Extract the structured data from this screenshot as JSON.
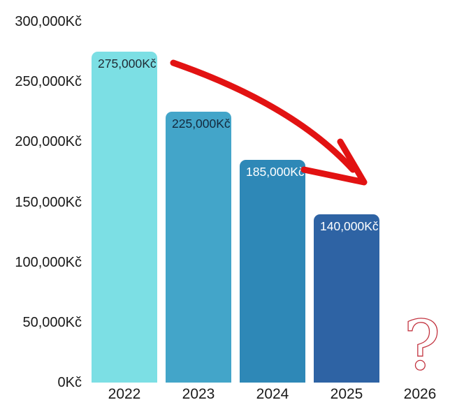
{
  "chart_data": {
    "type": "bar",
    "title": "",
    "xlabel": "",
    "ylabel": "",
    "categories": [
      "2022",
      "2023",
      "2024",
      "2025",
      "2026"
    ],
    "values": [
      275000,
      225000,
      185000,
      140000,
      null
    ],
    "value_labels": [
      "275,000Kč",
      "225,000Kč",
      "185,000Kč",
      "140,000Kč",
      ""
    ],
    "bar_colors": [
      "#7cdfe4",
      "#43a5c9",
      "#2e88b7",
      "#2e63a4"
    ],
    "value_label_colors": [
      "#1f2a33",
      "#13293d",
      "#ffffff",
      "#ffffff"
    ],
    "ylim": [
      0,
      300000
    ],
    "yticks": [
      {
        "value": 0,
        "label": "0Kč"
      },
      {
        "value": 50000,
        "label": "50,000Kč"
      },
      {
        "value": 100000,
        "label": "100,000Kč"
      },
      {
        "value": 150000,
        "label": "150,000Kč"
      },
      {
        "value": 200000,
        "label": "200,000Kč"
      },
      {
        "value": 250000,
        "label": "250,000Kč"
      },
      {
        "value": 300000,
        "label": "300,000Kč"
      }
    ],
    "grid": false,
    "legend": false
  },
  "annotations": {
    "trend_arrow": {
      "description": "downward curved arrow",
      "color": "#e21212"
    },
    "question_mark": {
      "symbol": "?",
      "color": "#c2323e",
      "year": "2026"
    }
  },
  "colors": {
    "background": "#ffffff",
    "axis_text": "#1a1a1a"
  }
}
